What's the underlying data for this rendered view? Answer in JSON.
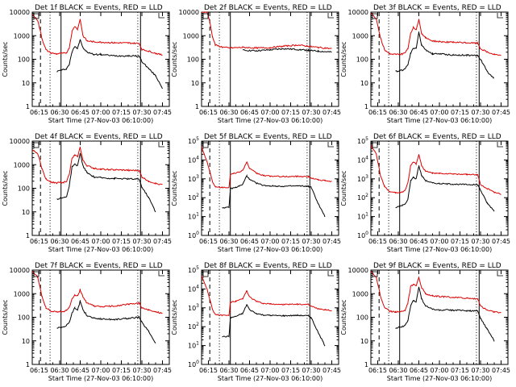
{
  "colors": {
    "events": "#000000",
    "lld": "#dd0000",
    "axis": "#000000",
    "background": "#ffffff"
  },
  "common": {
    "ylabel": "Counts/sec",
    "xlabel": "Start Time (27-Nov-03 06:10:00)",
    "xticks": [
      "06:15",
      "06:30",
      "06:45",
      "07:00",
      "07:15",
      "07:30",
      "07:45"
    ],
    "x_range": [
      "06:10",
      "07:50"
    ],
    "y_scale": "log",
    "markers": {
      "dashed": [
        "06:16"
      ],
      "dotted": [
        "06:23",
        "07:27"
      ],
      "solid": [
        "06:31",
        "07:29"
      ]
    }
  },
  "chart_data": [
    {
      "type": "line",
      "title": "Det 1f BLACK = Events, RED = LLD",
      "ytick_style": "plain",
      "ylim": [
        1,
        10000
      ],
      "yticks": [
        "1",
        "10",
        "100",
        "1000",
        "10000"
      ],
      "x": [
        "06:10",
        "06:14",
        "06:17",
        "06:20",
        "06:24",
        "06:28",
        "06:31",
        "06:33",
        "06:35",
        "06:37",
        "06:39",
        "06:41",
        "06:43",
        "06:45",
        "06:47",
        "06:50",
        "06:55",
        "07:00",
        "07:10",
        "07:20",
        "07:28",
        "07:30",
        "07:35",
        "07:40",
        "07:45"
      ],
      "series": [
        {
          "name": "BLACK = Events",
          "values": [
            null,
            null,
            null,
            null,
            null,
            30,
            35,
            36,
            40,
            60,
            200,
            350,
            300,
            700,
            300,
            200,
            160,
            160,
            140,
            140,
            135,
            80,
            40,
            20,
            6
          ]
        },
        {
          "name": "RED = LLD",
          "values": [
            8000,
            4500,
            800,
            250,
            180,
            170,
            175,
            180,
            190,
            300,
            1500,
            2500,
            1900,
            5000,
            1000,
            600,
            550,
            530,
            500,
            490,
            470,
            260,
            220,
            180,
            150
          ]
        }
      ]
    },
    {
      "type": "line",
      "title": "Det 2f BLACK = Events, RED = LLD",
      "ytick_style": "plain",
      "ylim": [
        1,
        10000
      ],
      "yticks": [
        "1",
        "10",
        "100",
        "1000",
        "10000"
      ],
      "x": [
        "06:10",
        "06:14",
        "06:16",
        "06:18",
        "06:20",
        "06:25",
        "06:30",
        "06:40",
        "06:50",
        "07:00",
        "07:10",
        "07:20",
        "07:28",
        "07:30",
        "07:35",
        "07:40",
        "07:45"
      ],
      "series": [
        {
          "name": "BLACK = Events",
          "values": [
            null,
            null,
            null,
            null,
            null,
            null,
            null,
            240,
            230,
            250,
            280,
            260,
            240,
            230,
            220,
            210,
            200
          ]
        },
        {
          "name": "RED = LLD",
          "values": [
            10000,
            10000,
            4000,
            900,
            400,
            330,
            300,
            320,
            300,
            310,
            360,
            400,
            360,
            340,
            320,
            300,
            280
          ]
        }
      ]
    },
    {
      "type": "line",
      "title": "Det 3f BLACK = Events, RED = LLD",
      "ytick_style": "plain",
      "ylim": [
        1,
        10000
      ],
      "yticks": [
        "1",
        "10",
        "100",
        "1000",
        "10000"
      ],
      "x": [
        "06:10",
        "06:14",
        "06:17",
        "06:20",
        "06:24",
        "06:28",
        "06:31",
        "06:33",
        "06:35",
        "06:37",
        "06:39",
        "06:41",
        "06:43",
        "06:45",
        "06:47",
        "06:50",
        "06:55",
        "07:00",
        "07:10",
        "07:20",
        "07:28",
        "07:30",
        "07:35",
        "07:40",
        "07:45"
      ],
      "series": [
        {
          "name": "BLACK = Events",
          "values": [
            null,
            null,
            null,
            null,
            null,
            30,
            33,
            35,
            40,
            60,
            180,
            300,
            280,
            1400,
            400,
            250,
            170,
            170,
            150,
            150,
            140,
            100,
            30,
            15,
            null
          ]
        },
        {
          "name": "RED = LLD",
          "values": [
            9000,
            5000,
            800,
            250,
            170,
            160,
            165,
            170,
            180,
            280,
            1200,
            2200,
            1800,
            5000,
            1200,
            800,
            600,
            560,
            520,
            500,
            480,
            280,
            200,
            160,
            140
          ]
        }
      ]
    },
    {
      "type": "line",
      "title": "Det 4f BLACK = Events, RED = LLD",
      "ytick_style": "plain",
      "ylim": [
        1,
        10000
      ],
      "yticks": [
        "1",
        "10",
        "100",
        "1000",
        "10000"
      ],
      "x": [
        "06:10",
        "06:14",
        "06:17",
        "06:20",
        "06:24",
        "06:28",
        "06:31",
        "06:33",
        "06:35",
        "06:37",
        "06:39",
        "06:41",
        "06:43",
        "06:45",
        "06:47",
        "06:50",
        "06:55",
        "07:00",
        "07:10",
        "07:20",
        "07:28",
        "07:30",
        "07:35",
        "07:40",
        "07:45"
      ],
      "series": [
        {
          "name": "BLACK = Events",
          "values": [
            null,
            null,
            null,
            null,
            null,
            35,
            38,
            40,
            45,
            120,
            800,
            1000,
            900,
            3000,
            900,
            450,
            300,
            280,
            260,
            250,
            240,
            110,
            40,
            10,
            null
          ]
        },
        {
          "name": "RED = LLD",
          "values": [
            4000,
            3000,
            700,
            250,
            180,
            170,
            175,
            180,
            200,
            400,
            1800,
            2500,
            2200,
            5500,
            1500,
            900,
            700,
            650,
            600,
            580,
            560,
            300,
            200,
            160,
            140
          ]
        }
      ]
    },
    {
      "type": "line",
      "title": "Det 5f BLACK = Events, RED = LLD",
      "ytick_style": "exponent",
      "ylim": [
        1,
        100000
      ],
      "yticks": [
        "10^0",
        "10^1",
        "10^2",
        "10^3",
        "10^4",
        "10^5"
      ],
      "x": [
        "06:10",
        "06:14",
        "06:16",
        "06:18",
        "06:20",
        "06:25",
        "06:30",
        "06:31",
        "06:35",
        "06:40",
        "06:43",
        "06:45",
        "06:50",
        "06:55",
        "07:00",
        "07:10",
        "07:20",
        "07:28",
        "07:30",
        "07:35",
        "07:40",
        "07:45"
      ],
      "series": [
        {
          "name": "BLACK = Events",
          "values": [
            null,
            null,
            null,
            null,
            null,
            30,
            30,
            300,
            350,
            500,
            1500,
            900,
            600,
            450,
            420,
            400,
            420,
            400,
            350,
            50,
            10,
            null
          ]
        },
        {
          "name": "RED = LLD",
          "values": [
            50000,
            8000,
            2500,
            700,
            400,
            350,
            350,
            1800,
            2000,
            2800,
            8000,
            3500,
            2000,
            1500,
            1400,
            1300,
            1350,
            1300,
            1100,
            900,
            800,
            700
          ]
        }
      ]
    },
    {
      "type": "line",
      "title": "Det 6f BLACK = Events, RED = LLD",
      "ytick_style": "exponent",
      "ylim": [
        1,
        100000
      ],
      "yticks": [
        "10^0",
        "10^1",
        "10^2",
        "10^3",
        "10^4",
        "10^5"
      ],
      "x": [
        "06:10",
        "06:14",
        "06:17",
        "06:20",
        "06:24",
        "06:28",
        "06:31",
        "06:33",
        "06:35",
        "06:37",
        "06:39",
        "06:41",
        "06:43",
        "06:45",
        "06:47",
        "06:50",
        "06:55",
        "07:00",
        "07:10",
        "07:20",
        "07:28",
        "07:30",
        "07:35",
        "07:40",
        "07:45"
      ],
      "series": [
        {
          "name": "BLACK = Events",
          "values": [
            null,
            null,
            null,
            null,
            null,
            30,
            35,
            40,
            45,
            80,
            800,
            1200,
            1000,
            5000,
            1500,
            800,
            600,
            560,
            520,
            500,
            480,
            250,
            50,
            20,
            null
          ]
        },
        {
          "name": "RED = LLD",
          "values": [
            60000,
            20000,
            1500,
            400,
            200,
            180,
            190,
            200,
            250,
            600,
            5000,
            8000,
            6000,
            20000,
            5000,
            2500,
            2000,
            1900,
            1800,
            1700,
            1600,
            500,
            300,
            200,
            150
          ]
        }
      ]
    },
    {
      "type": "line",
      "title": "Det 7f BLACK = Events, RED = LLD",
      "ytick_style": "plain",
      "ylim": [
        1,
        10000
      ],
      "yticks": [
        "1",
        "10",
        "100",
        "1000",
        "10000"
      ],
      "x": [
        "06:10",
        "06:14",
        "06:17",
        "06:20",
        "06:24",
        "06:28",
        "06:31",
        "06:33",
        "06:35",
        "06:37",
        "06:39",
        "06:41",
        "06:43",
        "06:45",
        "06:47",
        "06:50",
        "06:55",
        "07:00",
        "07:10",
        "07:20",
        "07:28",
        "07:30",
        "07:35",
        "07:40",
        "07:45"
      ],
      "series": [
        {
          "name": "BLACK = Events",
          "values": [
            null,
            null,
            null,
            null,
            null,
            35,
            38,
            40,
            45,
            60,
            150,
            250,
            200,
            500,
            200,
            120,
            90,
            85,
            80,
            90,
            100,
            60,
            25,
            8,
            null
          ]
        },
        {
          "name": "RED = LLD",
          "values": [
            9000,
            5000,
            800,
            250,
            180,
            170,
            175,
            180,
            190,
            260,
            600,
            900,
            800,
            1500,
            700,
            400,
            300,
            280,
            300,
            350,
            400,
            250,
            200,
            170,
            150
          ]
        }
      ]
    },
    {
      "type": "line",
      "title": "Det 8f BLACK = Events, RED = LLD",
      "ytick_style": "exponent",
      "ylim": [
        1,
        100000
      ],
      "yticks": [
        "10^0",
        "10^1",
        "10^2",
        "10^3",
        "10^4",
        "10^5"
      ],
      "x": [
        "06:10",
        "06:14",
        "06:16",
        "06:18",
        "06:20",
        "06:25",
        "06:30",
        "06:31",
        "06:35",
        "06:40",
        "06:43",
        "06:45",
        "06:50",
        "06:55",
        "07:00",
        "07:10",
        "07:20",
        "07:28",
        "07:30",
        "07:35",
        "07:40",
        "07:45"
      ],
      "series": [
        {
          "name": "BLACK = Events",
          "values": [
            null,
            null,
            null,
            null,
            null,
            30,
            30,
            300,
            350,
            500,
            1500,
            800,
            500,
            420,
            400,
            380,
            400,
            380,
            300,
            50,
            10,
            null
          ]
        },
        {
          "name": "RED = LLD",
          "values": [
            50000,
            10000,
            3000,
            800,
            450,
            400,
            400,
            2000,
            2200,
            3000,
            8000,
            3800,
            2200,
            1700,
            1600,
            1500,
            1550,
            1500,
            1200,
            900,
            800,
            700
          ]
        }
      ]
    },
    {
      "type": "line",
      "title": "Det 9f BLACK = Events, RED = LLD",
      "ytick_style": "plain",
      "ylim": [
        1,
        10000
      ],
      "yticks": [
        "1",
        "10",
        "100",
        "1000",
        "10000"
      ],
      "x": [
        "06:10",
        "06:14",
        "06:17",
        "06:20",
        "06:24",
        "06:28",
        "06:31",
        "06:33",
        "06:35",
        "06:37",
        "06:39",
        "06:41",
        "06:43",
        "06:45",
        "06:47",
        "06:50",
        "06:55",
        "07:00",
        "07:10",
        "07:20",
        "07:28",
        "07:30",
        "07:35",
        "07:40",
        "07:45"
      ],
      "series": [
        {
          "name": "BLACK = Events",
          "values": [
            null,
            null,
            null,
            null,
            null,
            35,
            38,
            40,
            45,
            70,
            300,
            500,
            450,
            2000,
            600,
            300,
            220,
            200,
            200,
            190,
            180,
            90,
            30,
            10,
            null
          ]
        },
        {
          "name": "RED = LLD",
          "values": [
            9000,
            5000,
            800,
            250,
            180,
            170,
            175,
            180,
            200,
            400,
            2000,
            2500,
            2200,
            5000,
            1800,
            1000,
            800,
            760,
            700,
            650,
            600,
            300,
            200,
            170,
            150
          ]
        }
      ]
    }
  ]
}
